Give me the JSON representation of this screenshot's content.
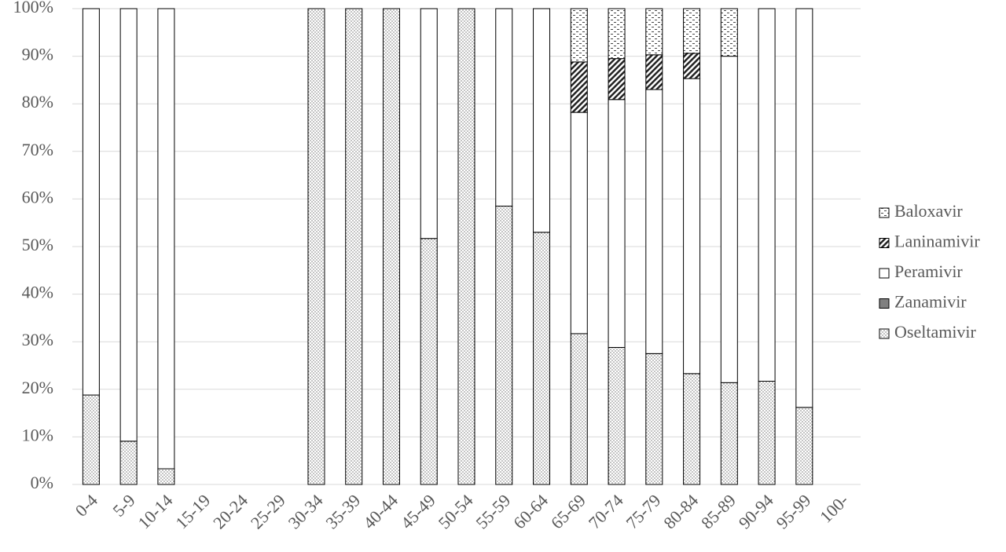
{
  "chart_data": {
    "type": "stacked_bar",
    "categories": [
      "0-4",
      "5-9",
      "10-14",
      "15-19",
      "20-24",
      "25-29",
      "30-34",
      "35-39",
      "40-44",
      "45-49",
      "50-54",
      "55-59",
      "60-64",
      "65-69",
      "70-74",
      "75-79",
      "80-84",
      "85-89",
      "90-94",
      "95-99",
      "100-"
    ],
    "series": [
      {
        "name": "Oseltamivir",
        "color": "#ffffff",
        "pattern": "dots",
        "values": [
          18.8,
          9.1,
          3.3,
          null,
          null,
          null,
          100,
          100,
          100,
          51.7,
          100,
          58.5,
          53,
          31.7,
          28.8,
          27.5,
          23.3,
          21.4,
          21.7,
          16.2,
          null
        ]
      },
      {
        "name": "Zanamivir",
        "color": "#808080",
        "pattern": "solid",
        "values": [
          0,
          0,
          0,
          null,
          null,
          null,
          0,
          0,
          0,
          0,
          0,
          0,
          0,
          0,
          0,
          0,
          0,
          0,
          0,
          0,
          null
        ]
      },
      {
        "name": "Peramivir",
        "color": "#ffffff",
        "pattern": "solid",
        "values": [
          81.2,
          90.9,
          96.7,
          null,
          null,
          null,
          0,
          0,
          0,
          48.3,
          0,
          41.5,
          47,
          46.5,
          52.1,
          55.5,
          62,
          68.6,
          78.3,
          83.8,
          null
        ]
      },
      {
        "name": "Laninamivir",
        "color": "#ffffff",
        "pattern": "hatch",
        "values": [
          0,
          0,
          0,
          null,
          null,
          null,
          0,
          0,
          0,
          0,
          0,
          0,
          0,
          10.6,
          8.6,
          7.3,
          5.3,
          0,
          0,
          0,
          null
        ]
      },
      {
        "name": "Baloxavir",
        "color": "#ffffff",
        "pattern": "dashes",
        "values": [
          0,
          0,
          0,
          null,
          null,
          null,
          0,
          0,
          0,
          0,
          0,
          0,
          0,
          11.2,
          10.5,
          9.7,
          9.4,
          10,
          0,
          0,
          null
        ]
      }
    ],
    "ylim": [
      0,
      100
    ],
    "yticks": [
      {
        "value": 0,
        "label": "0%"
      },
      {
        "value": 10,
        "label": "10%"
      },
      {
        "value": 20,
        "label": "20%"
      },
      {
        "value": 30,
        "label": "30%"
      },
      {
        "value": 40,
        "label": "40%"
      },
      {
        "value": 50,
        "label": "50%"
      },
      {
        "value": 60,
        "label": "60%"
      },
      {
        "value": 70,
        "label": "70%"
      },
      {
        "value": 80,
        "label": "80%"
      },
      {
        "value": 90,
        "label": "90%"
      },
      {
        "value": 100,
        "label": "100%"
      }
    ],
    "grid": true,
    "legend": "right"
  }
}
